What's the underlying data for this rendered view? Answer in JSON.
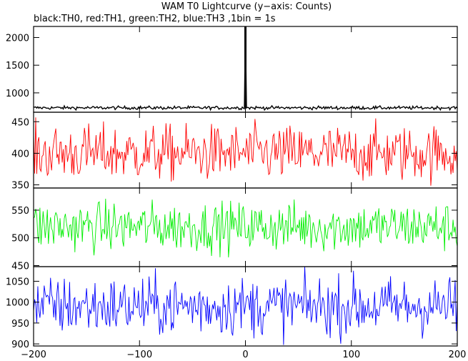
{
  "chart_data": {
    "type": "line",
    "title": "WAM T0 Lightcurve (y−axis: Counts)",
    "subtitle": "black:TH0, red:TH1, green:TH2, blue:TH3 ,1bin = 1s",
    "xlabel": "",
    "ylabel": "",
    "xlim": [
      -200,
      200
    ],
    "x_ticks": [
      -200,
      -100,
      0,
      100,
      200
    ],
    "x_tick_labels": [
      "−200",
      "−100",
      "0",
      "100",
      "200"
    ],
    "grid": false,
    "panels": [
      {
        "name": "TH0",
        "color": "#000000",
        "ylim": [
          650,
          2200
        ],
        "y_ticks": [
          1000,
          1500,
          2000
        ],
        "baseline": 730,
        "noise": 15,
        "spike": {
          "x": 0,
          "value": 2200
        },
        "summary": "steady around ~730 counts with a sharp spike exceeding 2000 counts at x = 0"
      },
      {
        "name": "TH1",
        "color": "#ff0000",
        "ylim": [
          345,
          465
        ],
        "y_ticks": [
          350,
          400,
          450
        ],
        "baseline": 400,
        "noise": 22,
        "summary": "fluctuates between ~350 and ~460 counts, mean ~400"
      },
      {
        "name": "TH2",
        "color": "#00ee00",
        "ylim": [
          448,
          590
        ],
        "y_ticks": [
          450,
          500,
          550
        ],
        "baseline": 520,
        "noise": 22,
        "summary": "fluctuates between ~455 and ~585 counts, mean ~520, dips near x = -100 and x = -15"
      },
      {
        "name": "TH3",
        "color": "#0000ff",
        "ylim": [
          895,
          1085
        ],
        "y_ticks": [
          900,
          950,
          1000,
          1050
        ],
        "baseline": 990,
        "noise": 35,
        "summary": "fluctuates between ~900 and ~1080 counts, mean ~990"
      }
    ]
  }
}
